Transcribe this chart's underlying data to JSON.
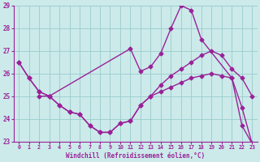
{
  "line1_x": [
    0,
    1,
    2,
    3,
    11,
    12,
    13,
    14,
    15,
    16,
    17,
    18,
    21,
    22,
    23
  ],
  "line1_y": [
    26.5,
    25.8,
    25.2,
    25.0,
    27.1,
    26.1,
    26.3,
    26.9,
    28.0,
    29.0,
    28.8,
    27.5,
    25.8,
    24.5,
    22.9
  ],
  "line2_x": [
    2,
    3,
    4,
    5,
    6,
    7,
    8,
    9,
    10,
    11,
    12,
    13,
    14,
    15,
    16,
    17,
    18,
    19,
    20,
    21,
    22,
    23
  ],
  "line2_y": [
    25.0,
    25.0,
    24.6,
    24.3,
    24.2,
    23.7,
    23.4,
    23.4,
    23.8,
    23.9,
    24.6,
    25.0,
    25.5,
    25.9,
    26.2,
    26.5,
    26.8,
    27.0,
    26.8,
    26.2,
    25.8,
    25.0
  ],
  "line3_x": [
    0,
    1,
    2,
    3,
    4,
    5,
    6,
    7,
    8,
    9,
    10,
    11,
    12,
    13,
    14,
    15,
    16,
    17,
    18,
    19,
    20,
    21,
    22,
    23
  ],
  "line3_y": [
    26.5,
    25.8,
    25.2,
    25.0,
    24.6,
    24.3,
    24.2,
    23.7,
    23.4,
    23.4,
    23.8,
    23.9,
    24.6,
    25.0,
    25.2,
    25.4,
    25.6,
    25.8,
    25.9,
    26.0,
    25.9,
    25.8,
    23.7,
    22.9
  ],
  "line_color": "#992299",
  "bg_color": "#cceaea",
  "grid_color": "#99cccc",
  "xlabel": "Windchill (Refroidissement éolien,°C)",
  "xlim": [
    -0.5,
    23.5
  ],
  "ylim": [
    23,
    29
  ],
  "yticks": [
    23,
    24,
    25,
    26,
    27,
    28,
    29
  ],
  "xticks": [
    0,
    1,
    2,
    3,
    4,
    5,
    6,
    7,
    8,
    9,
    10,
    11,
    12,
    13,
    14,
    15,
    16,
    17,
    18,
    19,
    20,
    21,
    22,
    23
  ],
  "marker": "D",
  "markersize": 2.5,
  "linewidth": 1.0
}
